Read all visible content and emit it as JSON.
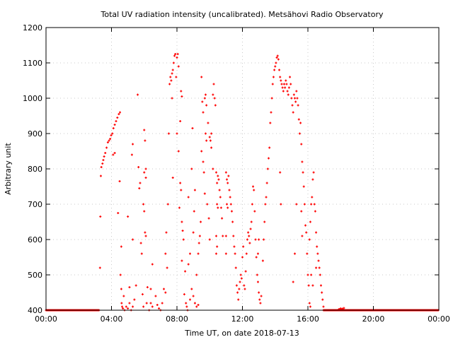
{
  "chart_data": {
    "type": "scatter",
    "title": "Total UV radiation intensity (uncalibrated). Metsähovi Radio Observatory",
    "xlabel": "Time UT, on date 2018-07-13",
    "ylabel": "Arbitrary unit",
    "xlim": [
      0,
      24
    ],
    "ylim": [
      400,
      1200
    ],
    "x_ticks": [
      0,
      4,
      8,
      12,
      16,
      20,
      24
    ],
    "x_tick_labels": [
      "00:00",
      "04:00",
      "08:00",
      "12:00",
      "16:00",
      "20:00",
      "00:00"
    ],
    "y_ticks": [
      400,
      500,
      600,
      700,
      800,
      900,
      1000,
      1100,
      1200
    ],
    "y_tick_labels": [
      "400",
      "500",
      "600",
      "700",
      "800",
      "900",
      "1000",
      "1100",
      "1200"
    ],
    "grid": true,
    "marker_color": "#ff0000",
    "baseline": {
      "value": 400,
      "ranges": [
        [
          0,
          3.25
        ],
        [
          16.95,
          24
        ]
      ]
    },
    "points": [
      [
        3.3,
        520
      ],
      [
        3.32,
        665
      ],
      [
        3.35,
        780
      ],
      [
        3.38,
        805
      ],
      [
        3.45,
        815
      ],
      [
        3.5,
        825
      ],
      [
        3.55,
        835
      ],
      [
        3.62,
        845
      ],
      [
        3.7,
        860
      ],
      [
        3.78,
        875
      ],
      [
        3.85,
        880
      ],
      [
        3.92,
        885
      ],
      [
        3.98,
        895
      ],
      [
        4.05,
        900
      ],
      [
        4.12,
        915
      ],
      [
        4.2,
        925
      ],
      [
        4.28,
        935
      ],
      [
        4.36,
        945
      ],
      [
        4.45,
        955
      ],
      [
        4.52,
        960
      ],
      [
        4.1,
        840
      ],
      [
        4.2,
        845
      ],
      [
        4.5,
        765
      ],
      [
        4.4,
        675
      ],
      [
        4.6,
        580
      ],
      [
        4.55,
        500
      ],
      [
        4.6,
        460
      ],
      [
        4.62,
        420
      ],
      [
        4.65,
        410
      ],
      [
        4.7,
        405
      ],
      [
        4.8,
        400
      ],
      [
        4.9,
        410
      ],
      [
        5.0,
        405
      ],
      [
        5.1,
        420
      ],
      [
        5.2,
        400
      ],
      [
        5.3,
        410
      ],
      [
        4.75,
        440
      ],
      [
        5.1,
        465
      ],
      [
        5.25,
        840
      ],
      [
        5.3,
        870
      ],
      [
        5.3,
        600
      ],
      [
        5.0,
        665
      ],
      [
        5.4,
        430
      ],
      [
        5.5,
        470
      ],
      [
        5.6,
        1010
      ],
      [
        5.65,
        805
      ],
      [
        5.7,
        745
      ],
      [
        5.75,
        760
      ],
      [
        5.8,
        590
      ],
      [
        5.85,
        560
      ],
      [
        5.9,
        445
      ],
      [
        5.95,
        410
      ],
      [
        6.0,
        910
      ],
      [
        6.05,
        880
      ],
      [
        6.1,
        800
      ],
      [
        6.0,
        790
      ],
      [
        6.1,
        775
      ],
      [
        5.95,
        700
      ],
      [
        6.0,
        680
      ],
      [
        6.05,
        620
      ],
      [
        6.1,
        610
      ],
      [
        6.15,
        420
      ],
      [
        6.3,
        400
      ],
      [
        6.4,
        420
      ],
      [
        6.5,
        410
      ],
      [
        6.2,
        465
      ],
      [
        6.4,
        460
      ],
      [
        6.5,
        530
      ],
      [
        6.7,
        440
      ],
      [
        6.8,
        415
      ],
      [
        6.9,
        405
      ],
      [
        7.0,
        400
      ],
      [
        7.1,
        420
      ],
      [
        7.2,
        460
      ],
      [
        7.3,
        450
      ],
      [
        7.35,
        620
      ],
      [
        7.3,
        560
      ],
      [
        7.4,
        520
      ],
      [
        7.45,
        700
      ],
      [
        7.5,
        900
      ],
      [
        7.55,
        1040
      ],
      [
        7.6,
        1060
      ],
      [
        7.65,
        1050
      ],
      [
        7.7,
        1070
      ],
      [
        7.75,
        1080
      ],
      [
        7.8,
        1100
      ],
      [
        7.85,
        1120
      ],
      [
        7.9,
        1125
      ],
      [
        8.0,
        1115
      ],
      [
        8.05,
        1125
      ],
      [
        8.1,
        1090
      ],
      [
        7.95,
        1060
      ],
      [
        7.7,
        1000
      ],
      [
        7.75,
        775
      ],
      [
        8.0,
        900
      ],
      [
        8.2,
        935
      ],
      [
        8.25,
        1020
      ],
      [
        8.3,
        1005
      ],
      [
        8.1,
        850
      ],
      [
        8.2,
        760
      ],
      [
        8.25,
        740
      ],
      [
        8.3,
        650
      ],
      [
        8.35,
        625
      ],
      [
        8.4,
        600
      ],
      [
        8.15,
        690
      ],
      [
        8.3,
        540
      ],
      [
        8.5,
        510
      ],
      [
        8.45,
        445
      ],
      [
        8.55,
        420
      ],
      [
        8.6,
        410
      ],
      [
        8.65,
        400
      ],
      [
        8.8,
        430
      ],
      [
        8.9,
        460
      ],
      [
        9.0,
        440
      ],
      [
        9.1,
        420
      ],
      [
        9.2,
        410
      ],
      [
        9.3,
        415
      ],
      [
        8.7,
        530
      ],
      [
        8.8,
        560
      ],
      [
        9.0,
        620
      ],
      [
        9.05,
        680
      ],
      [
        9.1,
        740
      ],
      [
        8.9,
        800
      ],
      [
        8.95,
        915
      ],
      [
        8.7,
        720
      ],
      [
        9.2,
        500
      ],
      [
        9.3,
        560
      ],
      [
        9.35,
        590
      ],
      [
        9.4,
        610
      ],
      [
        9.45,
        650
      ],
      [
        9.5,
        1060
      ],
      [
        9.55,
        990
      ],
      [
        9.6,
        960
      ],
      [
        9.7,
        1000
      ],
      [
        9.75,
        1010
      ],
      [
        9.8,
        980
      ],
      [
        9.5,
        850
      ],
      [
        9.6,
        820
      ],
      [
        9.65,
        790
      ],
      [
        9.75,
        900
      ],
      [
        9.8,
        880
      ],
      [
        9.9,
        930
      ],
      [
        10.0,
        890
      ],
      [
        10.05,
        880
      ],
      [
        10.1,
        900
      ],
      [
        10.2,
        1010
      ],
      [
        10.25,
        1040
      ],
      [
        10.3,
        1000
      ],
      [
        10.35,
        980
      ],
      [
        10.1,
        860
      ],
      [
        10.2,
        800
      ],
      [
        9.85,
        700
      ],
      [
        9.95,
        660
      ],
      [
        10.0,
        600
      ],
      [
        9.7,
        730
      ],
      [
        10.4,
        790
      ],
      [
        10.45,
        760
      ],
      [
        10.5,
        780
      ],
      [
        10.55,
        770
      ],
      [
        10.6,
        740
      ],
      [
        10.65,
        720
      ],
      [
        10.7,
        690
      ],
      [
        10.75,
        660
      ],
      [
        10.8,
        610
      ],
      [
        10.45,
        700
      ],
      [
        10.5,
        690
      ],
      [
        10.4,
        610
      ],
      [
        10.45,
        580
      ],
      [
        10.4,
        560
      ],
      [
        11.0,
        790
      ],
      [
        11.05,
        770
      ],
      [
        11.1,
        760
      ],
      [
        11.15,
        780
      ],
      [
        11.2,
        740
      ],
      [
        11.25,
        720
      ],
      [
        11.3,
        700
      ],
      [
        11.35,
        680
      ],
      [
        11.4,
        650
      ],
      [
        11.45,
        610
      ],
      [
        11.5,
        580
      ],
      [
        11.55,
        560
      ],
      [
        11.05,
        700
      ],
      [
        11.1,
        690
      ],
      [
        11.0,
        610
      ],
      [
        11.0,
        560
      ],
      [
        11.6,
        520
      ],
      [
        11.65,
        470
      ],
      [
        11.7,
        450
      ],
      [
        11.75,
        430
      ],
      [
        11.8,
        460
      ],
      [
        11.85,
        480
      ],
      [
        11.9,
        500
      ],
      [
        11.95,
        490
      ],
      [
        12.0,
        550
      ],
      [
        12.05,
        580
      ],
      [
        12.1,
        470
      ],
      [
        12.15,
        460
      ],
      [
        12.2,
        510
      ],
      [
        12.25,
        560
      ],
      [
        12.3,
        600
      ],
      [
        12.35,
        620
      ],
      [
        12.4,
        610
      ],
      [
        12.45,
        590
      ],
      [
        12.5,
        630
      ],
      [
        12.55,
        650
      ],
      [
        12.6,
        700
      ],
      [
        12.65,
        750
      ],
      [
        12.7,
        740
      ],
      [
        12.75,
        680
      ],
      [
        12.8,
        600
      ],
      [
        12.85,
        550
      ],
      [
        12.9,
        500
      ],
      [
        12.95,
        480
      ],
      [
        13.0,
        450
      ],
      [
        13.05,
        430
      ],
      [
        13.1,
        420
      ],
      [
        13.15,
        440
      ],
      [
        13.0,
        600
      ],
      [
        12.95,
        560
      ],
      [
        13.25,
        540
      ],
      [
        13.3,
        600
      ],
      [
        13.35,
        650
      ],
      [
        13.4,
        700
      ],
      [
        13.45,
        720
      ],
      [
        13.5,
        760
      ],
      [
        13.55,
        800
      ],
      [
        13.6,
        830
      ],
      [
        13.65,
        860
      ],
      [
        13.7,
        930
      ],
      [
        13.75,
        960
      ],
      [
        13.8,
        1000
      ],
      [
        13.85,
        1040
      ],
      [
        13.9,
        1060
      ],
      [
        13.95,
        1080
      ],
      [
        14.0,
        1090
      ],
      [
        14.05,
        1100
      ],
      [
        14.1,
        1115
      ],
      [
        14.15,
        1120
      ],
      [
        14.2,
        1110
      ],
      [
        14.25,
        1080
      ],
      [
        14.3,
        1060
      ],
      [
        14.35,
        1050
      ],
      [
        14.4,
        1040
      ],
      [
        14.45,
        1030
      ],
      [
        14.5,
        1020
      ],
      [
        14.55,
        1040
      ],
      [
        14.6,
        1030
      ],
      [
        14.65,
        1050
      ],
      [
        14.7,
        1040
      ],
      [
        14.75,
        1020
      ],
      [
        14.8,
        1010
      ],
      [
        14.85,
        1030
      ],
      [
        14.9,
        1060
      ],
      [
        14.95,
        1040
      ],
      [
        15.0,
        1000
      ],
      [
        15.05,
        980
      ],
      [
        15.1,
        960
      ],
      [
        15.15,
        1010
      ],
      [
        15.2,
        1000
      ],
      [
        15.25,
        990
      ],
      [
        15.3,
        1020
      ],
      [
        15.35,
        1000
      ],
      [
        15.4,
        980
      ],
      [
        15.45,
        940
      ],
      [
        15.5,
        900
      ],
      [
        15.55,
        930
      ],
      [
        15.6,
        870
      ],
      [
        15.65,
        820
      ],
      [
        15.7,
        790
      ],
      [
        15.75,
        750
      ],
      [
        15.8,
        700
      ],
      [
        15.85,
        640
      ],
      [
        15.9,
        620
      ],
      [
        15.95,
        560
      ],
      [
        16.0,
        500
      ],
      [
        16.05,
        470
      ],
      [
        16.1,
        420
      ],
      [
        16.15,
        410
      ],
      [
        14.3,
        790
      ],
      [
        14.35,
        700
      ],
      [
        15.1,
        480
      ],
      [
        15.2,
        560
      ],
      [
        15.3,
        700
      ],
      [
        15.6,
        680
      ],
      [
        15.65,
        610
      ],
      [
        16.1,
        600
      ],
      [
        16.15,
        650
      ],
      [
        16.2,
        700
      ],
      [
        16.25,
        720
      ],
      [
        16.3,
        770
      ],
      [
        16.35,
        790
      ],
      [
        16.4,
        700
      ],
      [
        16.45,
        680
      ],
      [
        16.5,
        620
      ],
      [
        16.55,
        580
      ],
      [
        16.6,
        560
      ],
      [
        16.65,
        540
      ],
      [
        16.7,
        520
      ],
      [
        16.75,
        500
      ],
      [
        16.8,
        470
      ],
      [
        16.85,
        450
      ],
      [
        16.9,
        430
      ],
      [
        16.95,
        410
      ],
      [
        16.2,
        500
      ],
      [
        16.3,
        470
      ],
      [
        16.5,
        520
      ],
      [
        17.9,
        403
      ],
      [
        18.0,
        405
      ],
      [
        18.1,
        404
      ],
      [
        18.2,
        406
      ]
    ]
  }
}
